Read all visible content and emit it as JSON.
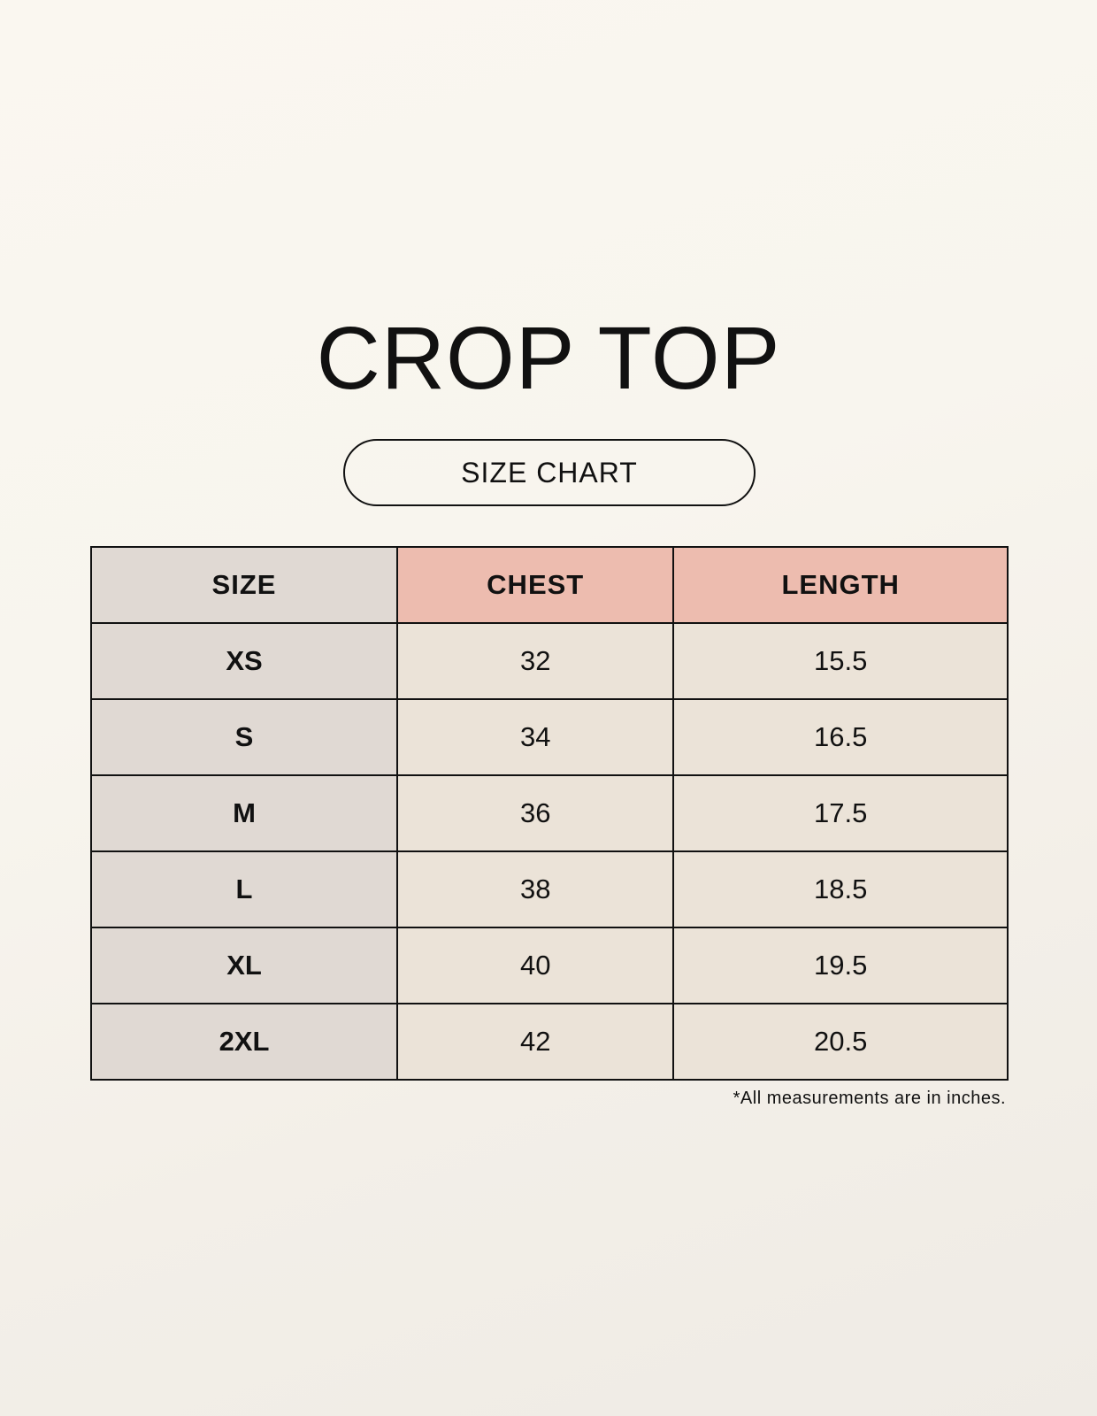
{
  "title": "CROP TOP",
  "subtitle": "SIZE CHART",
  "table": {
    "headers": [
      "SIZE",
      "CHEST",
      "LENGTH"
    ],
    "rows": [
      [
        "XS",
        "32",
        "15.5"
      ],
      [
        "S",
        "34",
        "16.5"
      ],
      [
        "M",
        "36",
        "17.5"
      ],
      [
        "L",
        "38",
        "18.5"
      ],
      [
        "XL",
        "40",
        "19.5"
      ],
      [
        "2XL",
        "42",
        "20.5"
      ]
    ]
  },
  "footnote": "*All measurements are in inches.",
  "colors": {
    "size_column": "#e0d9d3",
    "header_accent": "#edbcaf",
    "value_cells": "#ebe3d8"
  }
}
